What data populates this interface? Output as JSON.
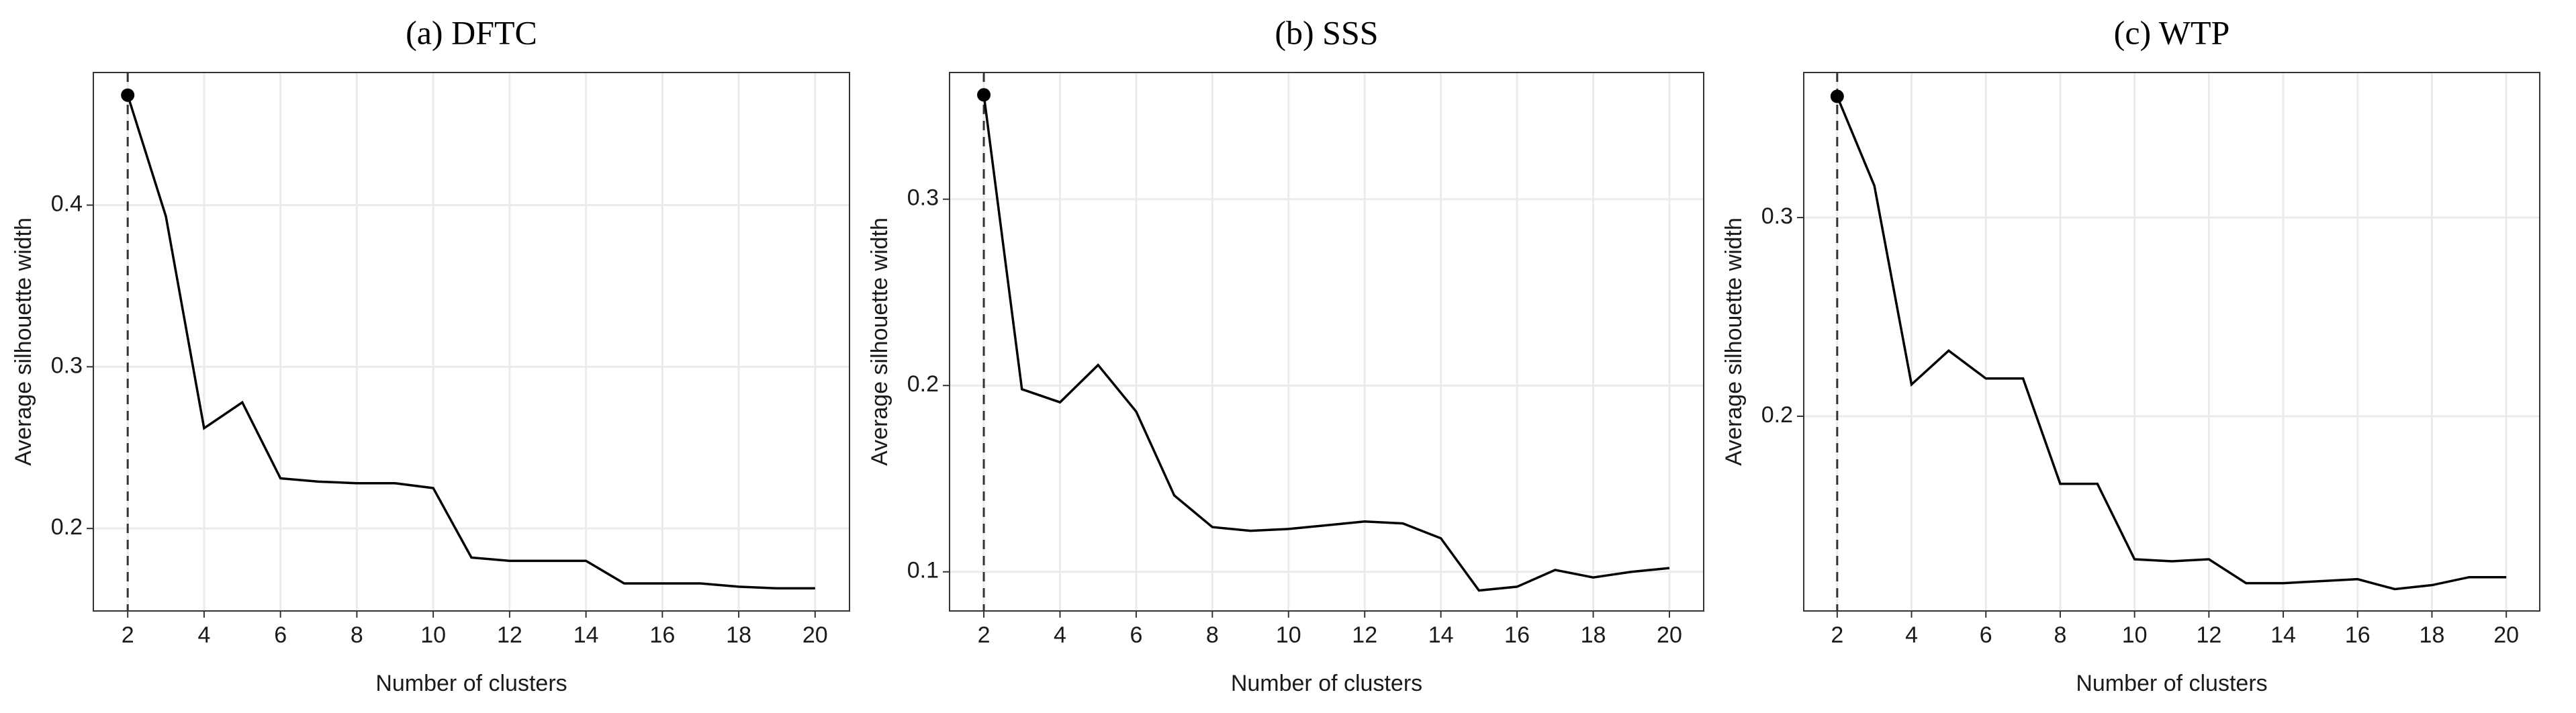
{
  "chart_data": [
    {
      "type": "line",
      "title": "(a)  DFTC",
      "xlabel": "Number of clusters",
      "ylabel": "Average silhouette width",
      "x": [
        2,
        3,
        4,
        5,
        6,
        7,
        8,
        9,
        10,
        11,
        12,
        13,
        14,
        15,
        16,
        17,
        18,
        19,
        20
      ],
      "values": [
        0.468,
        0.393,
        0.262,
        0.278,
        0.231,
        0.229,
        0.228,
        0.228,
        0.225,
        0.182,
        0.18,
        0.18,
        0.18,
        0.166,
        0.166,
        0.166,
        0.164,
        0.163,
        0.163
      ],
      "color": "#000000",
      "xlim": [
        1.1,
        20.9
      ],
      "ylim": [
        0.149,
        0.482
      ],
      "xticks": [
        2,
        4,
        6,
        8,
        10,
        12,
        14,
        16,
        18,
        20
      ],
      "yticks": [
        0.2,
        0.3,
        0.4
      ],
      "grid": true
    },
    {
      "type": "line",
      "title": "(b)  SSS",
      "xlabel": "Number of clusters",
      "ylabel": "Average silhouette width",
      "x": [
        2,
        3,
        4,
        5,
        6,
        7,
        8,
        9,
        10,
        11,
        12,
        13,
        14,
        15,
        16,
        17,
        18,
        19,
        20
      ],
      "values": [
        0.356,
        0.198,
        0.191,
        0.211,
        0.186,
        0.141,
        0.124,
        0.122,
        0.123,
        0.125,
        0.127,
        0.126,
        0.118,
        0.09,
        0.092,
        0.101,
        0.097,
        0.1,
        0.102
      ],
      "color": "#000000",
      "xlim": [
        1.1,
        20.9
      ],
      "ylim": [
        0.079,
        0.368
      ],
      "xticks": [
        2,
        4,
        6,
        8,
        10,
        12,
        14,
        16,
        18,
        20
      ],
      "yticks": [
        0.1,
        0.2,
        0.3
      ],
      "grid": true
    },
    {
      "type": "line",
      "title": "(c)  WTP",
      "xlabel": "Number of clusters",
      "ylabel": "Average silhouette width",
      "x": [
        2,
        3,
        4,
        5,
        6,
        7,
        8,
        9,
        10,
        11,
        12,
        13,
        14,
        15,
        16,
        17,
        18,
        19,
        20
      ],
      "values": [
        0.361,
        0.316,
        0.216,
        0.233,
        0.219,
        0.219,
        0.166,
        0.166,
        0.128,
        0.127,
        0.128,
        0.116,
        0.116,
        0.117,
        0.118,
        0.113,
        0.115,
        0.119,
        0.119
      ],
      "color": "#000000",
      "xlim": [
        1.1,
        20.9
      ],
      "ylim": [
        0.102,
        0.373
      ],
      "xticks": [
        2,
        4,
        6,
        8,
        10,
        12,
        14,
        16,
        18,
        20
      ],
      "yticks": [
        0.2,
        0.3
      ],
      "grid": true
    }
  ]
}
